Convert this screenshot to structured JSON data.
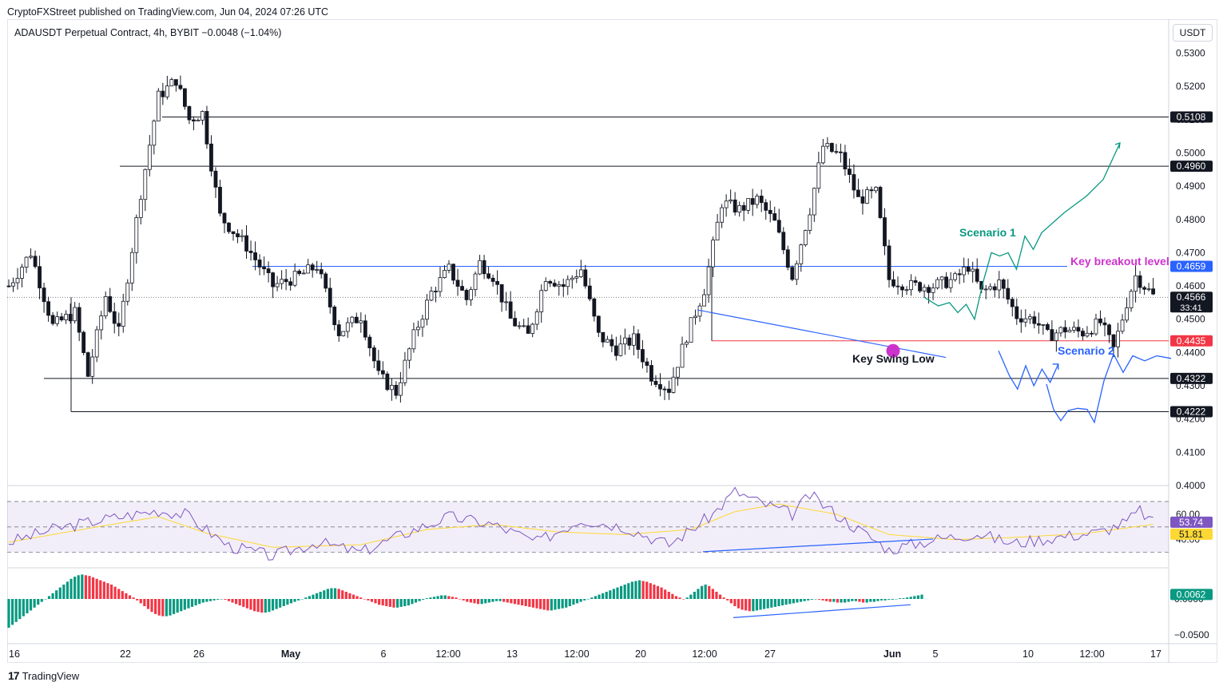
{
  "header": {
    "published": "CryptoFXStreet published on TradingView.com, Jun 04, 2024 07:26 UTC",
    "symbol_line": "ADAUSDT Perpetual Contract, 4h, BYBIT  −0.0048 (−1.04%)",
    "currency_button": "USDT"
  },
  "footer": {
    "brand": "TradingView",
    "logo": "17"
  },
  "colors": {
    "up": "#089981",
    "down": "#f23645",
    "level": "#131722",
    "breakout": "#2962ff",
    "keylow": "#cc33cc",
    "scenario1": "#089981",
    "scenario2": "#2962ff",
    "rsi": "#7e57c2",
    "rsi_ma": "#fdd835"
  },
  "chart_data": {
    "type": "candlestick",
    "title": "ADAUSDT Perpetual Contract, 4h, BYBIT",
    "price_axis": {
      "ticks": [
        "0.5300",
        "0.5200",
        "0.5100",
        "0.5000",
        "0.4900",
        "0.4800",
        "0.4700",
        "0.4600",
        "0.4500",
        "0.4400",
        "0.4300",
        "0.4200",
        "0.4100",
        "0.4000"
      ],
      "ylim": [
        0.3995,
        0.5335
      ]
    },
    "time_axis": [
      "16",
      "22",
      "26",
      "May",
      "6",
      "12:00",
      "13",
      "12:00",
      "20",
      "12:00",
      "27",
      "Jun",
      "5",
      "10",
      "12:00",
      "17"
    ],
    "price_path": [
      [
        0,
        0.46
      ],
      [
        5,
        0.47
      ],
      [
        10,
        0.448
      ],
      [
        15,
        0.452
      ],
      [
        18,
        0.433
      ],
      [
        22,
        0.457
      ],
      [
        25,
        0.446
      ],
      [
        30,
        0.488
      ],
      [
        34,
        0.517
      ],
      [
        38,
        0.522
      ],
      [
        41,
        0.51
      ],
      [
        44,
        0.512
      ],
      [
        48,
        0.481
      ],
      [
        54,
        0.472
      ],
      [
        60,
        0.46
      ],
      [
        66,
        0.463
      ],
      [
        70,
        0.466
      ],
      [
        75,
        0.446
      ],
      [
        80,
        0.451
      ],
      [
        84,
        0.433
      ],
      [
        88,
        0.428
      ],
      [
        92,
        0.445
      ],
      [
        96,
        0.458
      ],
      [
        100,
        0.465
      ],
      [
        104,
        0.456
      ],
      [
        107,
        0.467
      ],
      [
        110,
        0.463
      ],
      [
        114,
        0.45
      ],
      [
        118,
        0.445
      ],
      [
        122,
        0.463
      ],
      [
        126,
        0.46
      ],
      [
        130,
        0.465
      ],
      [
        134,
        0.445
      ],
      [
        138,
        0.441
      ],
      [
        142,
        0.444
      ],
      [
        146,
        0.433
      ],
      [
        150,
        0.429
      ],
      [
        154,
        0.445
      ],
      [
        158,
        0.459
      ],
      [
        162,
        0.485
      ],
      [
        166,
        0.483
      ],
      [
        170,
        0.486
      ],
      [
        174,
        0.479
      ],
      [
        178,
        0.463
      ],
      [
        182,
        0.483
      ],
      [
        185,
        0.502
      ],
      [
        189,
        0.499
      ],
      [
        193,
        0.486
      ],
      [
        197,
        0.488
      ],
      [
        200,
        0.462
      ],
      [
        205,
        0.46
      ],
      [
        210,
        0.46
      ],
      [
        215,
        0.462
      ],
      [
        218,
        0.466
      ],
      [
        221,
        0.458
      ],
      [
        225,
        0.461
      ],
      [
        229,
        0.451
      ],
      [
        233,
        0.45
      ],
      [
        236,
        0.445
      ],
      [
        240,
        0.447
      ],
      [
        244,
        0.446
      ],
      [
        248,
        0.449
      ],
      [
        251,
        0.441
      ],
      [
        254,
        0.455
      ],
      [
        256,
        0.463
      ],
      [
        258,
        0.46
      ],
      [
        260,
        0.457
      ]
    ],
    "levels": [
      {
        "label": "0.5108",
        "value": 0.5108
      },
      {
        "label": "0.4960",
        "value": 0.496
      },
      {
        "label": "0.4659",
        "value": 0.4659
      },
      {
        "label": "0.4566",
        "value": 0.4566,
        "sub": "33:41"
      },
      {
        "label": "0.4435",
        "value": 0.4435
      },
      {
        "label": "0.4322",
        "value": 0.4322
      },
      {
        "label": "0.4222",
        "value": 0.4222
      }
    ],
    "annotations": {
      "scenario1": "Scenario 1",
      "scenario2": "Scenario 2",
      "breakout": "Key breakout level",
      "swing_low": "Key Swing Low"
    },
    "scenario1_path": [
      [
        0,
        0.4566
      ],
      [
        5,
        0.454
      ],
      [
        9,
        0.455
      ],
      [
        12,
        0.452
      ],
      [
        15,
        0.4545
      ],
      [
        18,
        0.45
      ],
      [
        21,
        0.461
      ],
      [
        24,
        0.47
      ],
      [
        27,
        0.469
      ],
      [
        30,
        0.47
      ],
      [
        33,
        0.465
      ],
      [
        36,
        0.475
      ],
      [
        39,
        0.471
      ],
      [
        42,
        0.476
      ],
      [
        50,
        0.482
      ],
      [
        58,
        0.487
      ],
      [
        64,
        0.492
      ],
      [
        70,
        0.503
      ]
    ],
    "scenario2_path": [
      [
        0,
        0.4405
      ],
      [
        4,
        0.433
      ],
      [
        7,
        0.429
      ],
      [
        10,
        0.436
      ],
      [
        13,
        0.43
      ],
      [
        16,
        0.435
      ],
      [
        19,
        0.431
      ],
      [
        22,
        0.4365
      ]
    ],
    "scenario2b_path": [
      [
        0,
        0.4305
      ],
      [
        3,
        0.4228
      ],
      [
        6,
        0.4195
      ],
      [
        9,
        0.4225
      ],
      [
        13,
        0.4232
      ],
      [
        17,
        0.4229
      ],
      [
        20,
        0.419
      ],
      [
        24,
        0.4315
      ],
      [
        28,
        0.4395
      ],
      [
        32,
        0.434
      ],
      [
        36,
        0.439
      ],
      [
        41,
        0.4375
      ],
      [
        46,
        0.439
      ],
      [
        52,
        0.4382
      ]
    ],
    "rsi": {
      "ticks": [
        "60.00",
        "40.00"
      ],
      "ylim": [
        21,
        80
      ],
      "last": "53.74",
      "ma_last": "51.81",
      "path": [
        [
          0,
          38
        ],
        [
          10,
          48
        ],
        [
          20,
          55
        ],
        [
          34,
          63
        ],
        [
          40,
          60
        ],
        [
          50,
          35
        ],
        [
          60,
          27
        ],
        [
          70,
          38
        ],
        [
          80,
          30
        ],
        [
          90,
          45
        ],
        [
          100,
          58
        ],
        [
          110,
          52
        ],
        [
          120,
          38
        ],
        [
          130,
          56
        ],
        [
          140,
          50
        ],
        [
          150,
          36
        ],
        [
          160,
          60
        ],
        [
          165,
          78
        ],
        [
          170,
          70
        ],
        [
          178,
          60
        ],
        [
          182,
          75
        ],
        [
          190,
          55
        ],
        [
          200,
          32
        ],
        [
          210,
          40
        ],
        [
          220,
          45
        ],
        [
          228,
          37
        ],
        [
          238,
          42
        ],
        [
          248,
          46
        ],
        [
          254,
          54
        ],
        [
          257,
          63
        ],
        [
          260,
          53
        ]
      ],
      "ma_path": [
        [
          0,
          38
        ],
        [
          20,
          50
        ],
        [
          34,
          58
        ],
        [
          45,
          45
        ],
        [
          60,
          34
        ],
        [
          80,
          36
        ],
        [
          95,
          48
        ],
        [
          110,
          52
        ],
        [
          125,
          46
        ],
        [
          140,
          44
        ],
        [
          155,
          48
        ],
        [
          165,
          62
        ],
        [
          175,
          68
        ],
        [
          188,
          60
        ],
        [
          200,
          44
        ],
        [
          215,
          40
        ],
        [
          230,
          42
        ],
        [
          245,
          45
        ],
        [
          260,
          52
        ]
      ]
    },
    "macd": {
      "ticks": [
        "0.0000",
        "−0.0500"
      ],
      "ylim": [
        -0.06,
        0.04
      ],
      "last": "0.0062",
      "hist": [
        -0.04,
        -0.036,
        -0.032,
        -0.028,
        -0.024,
        -0.02,
        -0.016,
        -0.012,
        -0.008,
        -0.004,
        0.0,
        0.004,
        0.008,
        0.012,
        0.016,
        0.02,
        0.024,
        0.028,
        0.031,
        0.033,
        0.034,
        0.033,
        0.032,
        0.03,
        0.028,
        0.026,
        0.024,
        0.022,
        0.02,
        0.017,
        0.014,
        0.011,
        0.008,
        0.005,
        0.002,
        -0.002,
        -0.006,
        -0.01,
        -0.014,
        -0.018,
        -0.021,
        -0.023,
        -0.024,
        -0.024,
        -0.023,
        -0.021,
        -0.019,
        -0.017,
        -0.015,
        -0.013,
        -0.011,
        -0.009,
        -0.007,
        -0.005,
        -0.004,
        -0.003,
        -0.002,
        -0.001,
        0.0,
        -0.001,
        -0.003,
        -0.005,
        -0.007,
        -0.009,
        -0.011,
        -0.013,
        -0.015,
        -0.017,
        -0.018,
        -0.019,
        -0.019,
        -0.018,
        -0.016,
        -0.014,
        -0.012,
        -0.01,
        -0.008,
        -0.006,
        -0.004,
        -0.002,
        0.0,
        0.002,
        0.004,
        0.006,
        0.008,
        0.01,
        0.012,
        0.014,
        0.015,
        0.015,
        0.014,
        0.012,
        0.01,
        0.008,
        0.006,
        0.004,
        0.002,
        0.0,
        -0.002,
        -0.004,
        -0.006,
        -0.008,
        -0.009,
        -0.01,
        -0.011,
        -0.012,
        -0.012,
        -0.011,
        -0.01,
        -0.009,
        -0.007,
        -0.005,
        -0.003,
        -0.001,
        0.001,
        0.002,
        0.003,
        0.004,
        0.005,
        0.005,
        0.004,
        0.003,
        0.002,
        0.0,
        -0.002,
        -0.004,
        -0.005,
        -0.006,
        -0.007,
        -0.007,
        -0.006,
        -0.005,
        -0.004,
        -0.003,
        -0.003,
        -0.004,
        -0.005,
        -0.006,
        -0.007,
        -0.008,
        -0.009,
        -0.01,
        -0.011,
        -0.012,
        -0.013,
        -0.014,
        -0.015,
        -0.016,
        -0.016,
        -0.015,
        -0.014,
        -0.013,
        -0.012,
        -0.01,
        -0.008,
        -0.006,
        -0.004,
        -0.002,
        0.0,
        0.002,
        0.004,
        0.006,
        0.008,
        0.01,
        0.012,
        0.014,
        0.016,
        0.018,
        0.02,
        0.022,
        0.024,
        0.025,
        0.026,
        0.025,
        0.024,
        0.022,
        0.02,
        0.018,
        0.016,
        0.013,
        0.01,
        0.007,
        0.004,
        0.002,
        0.0,
        0.002,
        0.006,
        0.01,
        0.014,
        0.018,
        0.02,
        0.018,
        0.014,
        0.01,
        0.006,
        0.002,
        -0.002,
        -0.006,
        -0.01,
        -0.013,
        -0.015,
        -0.016,
        -0.017,
        -0.017,
        -0.016,
        -0.015,
        -0.014,
        -0.013,
        -0.012,
        -0.011,
        -0.01,
        -0.009,
        -0.008,
        -0.007,
        -0.006,
        -0.005,
        -0.004,
        -0.003,
        -0.002,
        -0.001,
        0.0,
        -0.001,
        -0.002,
        -0.003,
        -0.004,
        -0.004,
        -0.005,
        -0.005,
        -0.005,
        -0.004,
        -0.003,
        -0.003,
        -0.004,
        -0.005,
        -0.005,
        -0.004,
        -0.004,
        -0.003,
        -0.002,
        -0.002,
        -0.001,
        -0.001,
        0.0,
        0.001,
        0.001,
        0.002,
        0.003,
        0.004,
        0.005,
        0.006
      ]
    }
  }
}
